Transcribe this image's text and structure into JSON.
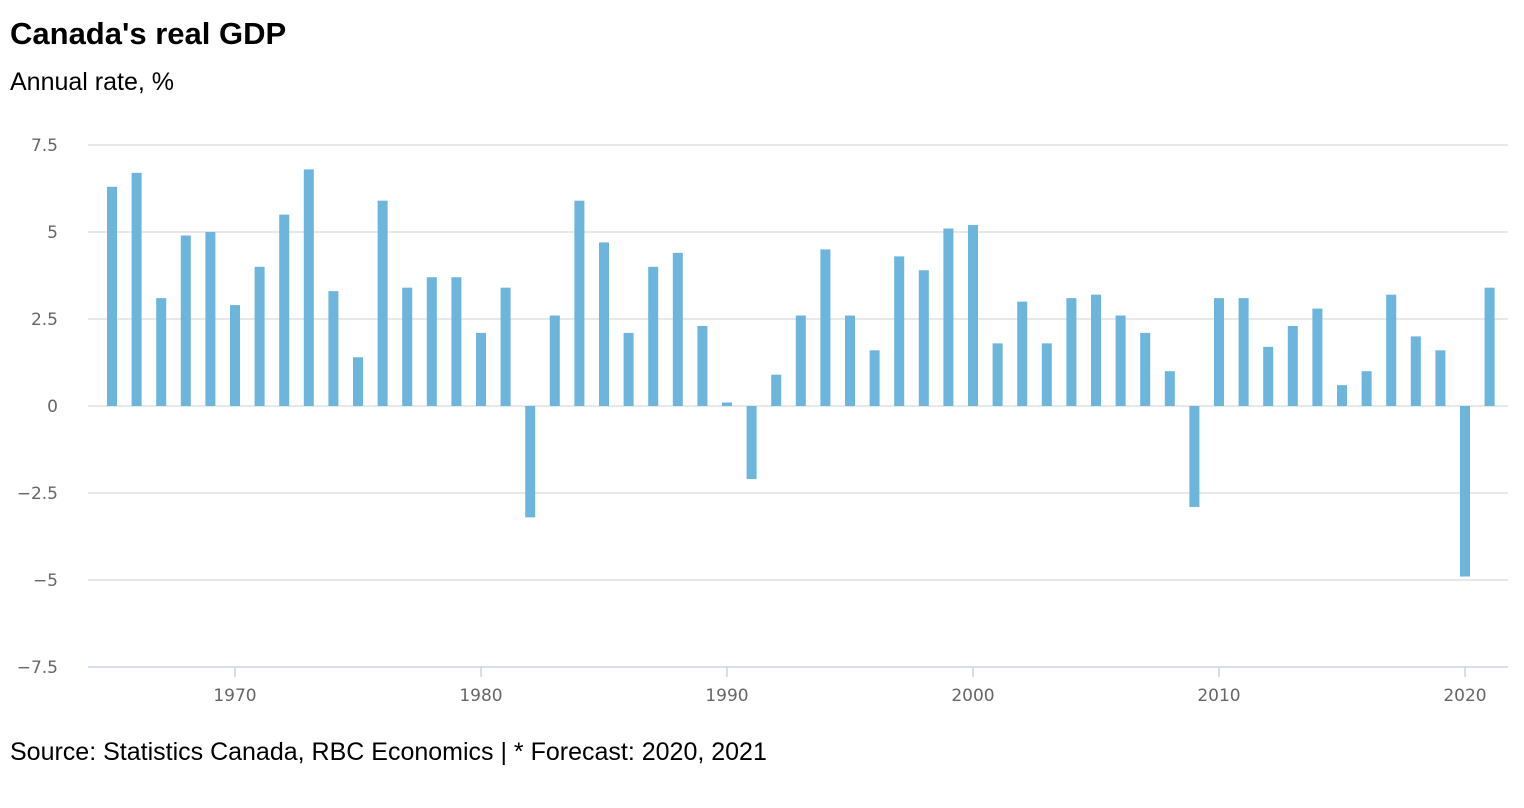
{
  "chart_data": {
    "type": "bar",
    "title": "Canada's real GDP",
    "subtitle": "Annual rate, %",
    "source": "Source: Statistics Canada, RBC Economics | * Forecast: 2020, 2021",
    "xlabel": "",
    "ylabel": "",
    "x": [
      1965,
      1966,
      1967,
      1968,
      1969,
      1970,
      1971,
      1972,
      1973,
      1974,
      1975,
      1976,
      1977,
      1978,
      1979,
      1980,
      1981,
      1982,
      1983,
      1984,
      1985,
      1986,
      1987,
      1988,
      1989,
      1990,
      1991,
      1992,
      1993,
      1994,
      1995,
      1996,
      1997,
      1998,
      1999,
      2000,
      2001,
      2002,
      2003,
      2004,
      2005,
      2006,
      2007,
      2008,
      2009,
      2010,
      2011,
      2012,
      2013,
      2014,
      2015,
      2016,
      2017,
      2018,
      2019,
      2020,
      2021
    ],
    "values": [
      6.3,
      6.7,
      3.1,
      4.9,
      5.0,
      2.9,
      4.0,
      5.5,
      6.8,
      3.3,
      1.4,
      5.9,
      3.4,
      3.7,
      3.7,
      2.1,
      3.4,
      -3.2,
      2.6,
      5.9,
      4.7,
      2.1,
      4.0,
      4.4,
      2.3,
      0.1,
      -2.1,
      0.9,
      2.6,
      4.5,
      2.6,
      1.6,
      4.3,
      3.9,
      5.1,
      5.2,
      1.8,
      3.0,
      1.8,
      3.1,
      3.2,
      2.6,
      2.1,
      1.0,
      -2.9,
      3.1,
      3.1,
      1.7,
      2.3,
      2.8,
      0.6,
      1.0,
      3.2,
      2.0,
      1.6,
      -4.9,
      3.4
    ],
    "ylim": [
      -7.5,
      7.5
    ],
    "xlim": [
      1964,
      2022
    ],
    "yticks": [
      7.5,
      5,
      2.5,
      0,
      -2.5,
      -5,
      -7.5
    ],
    "ytick_labels": [
      "7.5",
      "5",
      "2.5",
      "0",
      "−2.5",
      "−5",
      "−7.5"
    ],
    "xticks": [
      1970,
      1980,
      1990,
      2000,
      2010,
      2020
    ],
    "xtick_labels": [
      "1970",
      "1980",
      "1990",
      "2000",
      "2010",
      "2020"
    ],
    "grid": true,
    "legend": "none",
    "bar_color": "#6cb5dd"
  }
}
